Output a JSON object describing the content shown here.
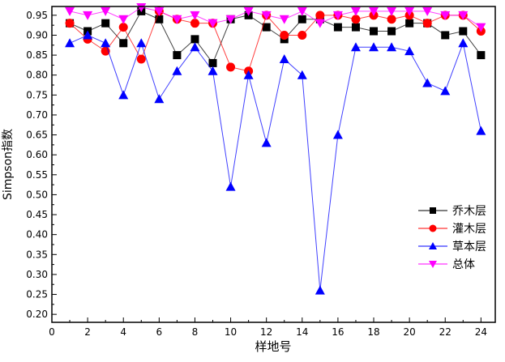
{
  "chart_data": {
    "type": "line",
    "xlabel": "样地号",
    "ylabel": "Simpson指数",
    "xlim": [
      0,
      24.8
    ],
    "ylim": [
      0.18,
      0.972
    ],
    "xticks": [
      0,
      2,
      4,
      6,
      8,
      10,
      12,
      14,
      16,
      18,
      20,
      22,
      24
    ],
    "yticks": [
      "0.20",
      "0.25",
      "0.30",
      "0.35",
      "0.40",
      "0.45",
      "0.50",
      "0.55",
      "0.60",
      "0.65",
      "0.70",
      "0.75",
      "0.80",
      "0.85",
      "0.90",
      "0.95"
    ],
    "grid": false,
    "legend_position": "right",
    "x": [
      1,
      2,
      3,
      4,
      5,
      6,
      7,
      8,
      9,
      10,
      11,
      12,
      13,
      14,
      15,
      16,
      17,
      18,
      19,
      20,
      21,
      22,
      23,
      24
    ],
    "series": [
      {
        "name": "乔木层",
        "color": "#000000",
        "marker": "square",
        "values": [
          0.93,
          0.91,
          0.93,
          0.88,
          0.96,
          0.94,
          0.85,
          0.89,
          0.83,
          0.94,
          0.95,
          0.92,
          0.89,
          0.94,
          0.94,
          0.92,
          0.92,
          0.91,
          0.91,
          0.93,
          0.93,
          0.9,
          0.91,
          0.85
        ]
      },
      {
        "name": "灌木层",
        "color": "#ff0000",
        "marker": "circle",
        "values": [
          0.93,
          0.89,
          0.86,
          0.92,
          0.84,
          0.96,
          0.94,
          0.93,
          0.93,
          0.82,
          0.81,
          0.95,
          0.9,
          0.9,
          0.95,
          0.95,
          0.94,
          0.95,
          0.94,
          0.95,
          0.93,
          0.95,
          0.95,
          0.91
        ]
      },
      {
        "name": "草本层",
        "color": "#0000ff",
        "marker": "triangle-up",
        "values": [
          0.88,
          0.9,
          0.88,
          0.75,
          0.88,
          0.74,
          0.81,
          0.87,
          0.81,
          0.52,
          0.8,
          0.63,
          0.84,
          0.8,
          0.26,
          0.65,
          0.87,
          0.87,
          0.87,
          0.86,
          0.78,
          0.76,
          0.88,
          0.66
        ]
      },
      {
        "name": "总体",
        "color": "#ff00ff",
        "marker": "triangle-down",
        "values": [
          0.96,
          0.95,
          0.96,
          0.94,
          0.97,
          0.96,
          0.94,
          0.95,
          0.93,
          0.94,
          0.96,
          0.95,
          0.94,
          0.96,
          0.93,
          0.95,
          0.96,
          0.96,
          0.96,
          0.96,
          0.96,
          0.95,
          0.95,
          0.92
        ]
      }
    ]
  }
}
